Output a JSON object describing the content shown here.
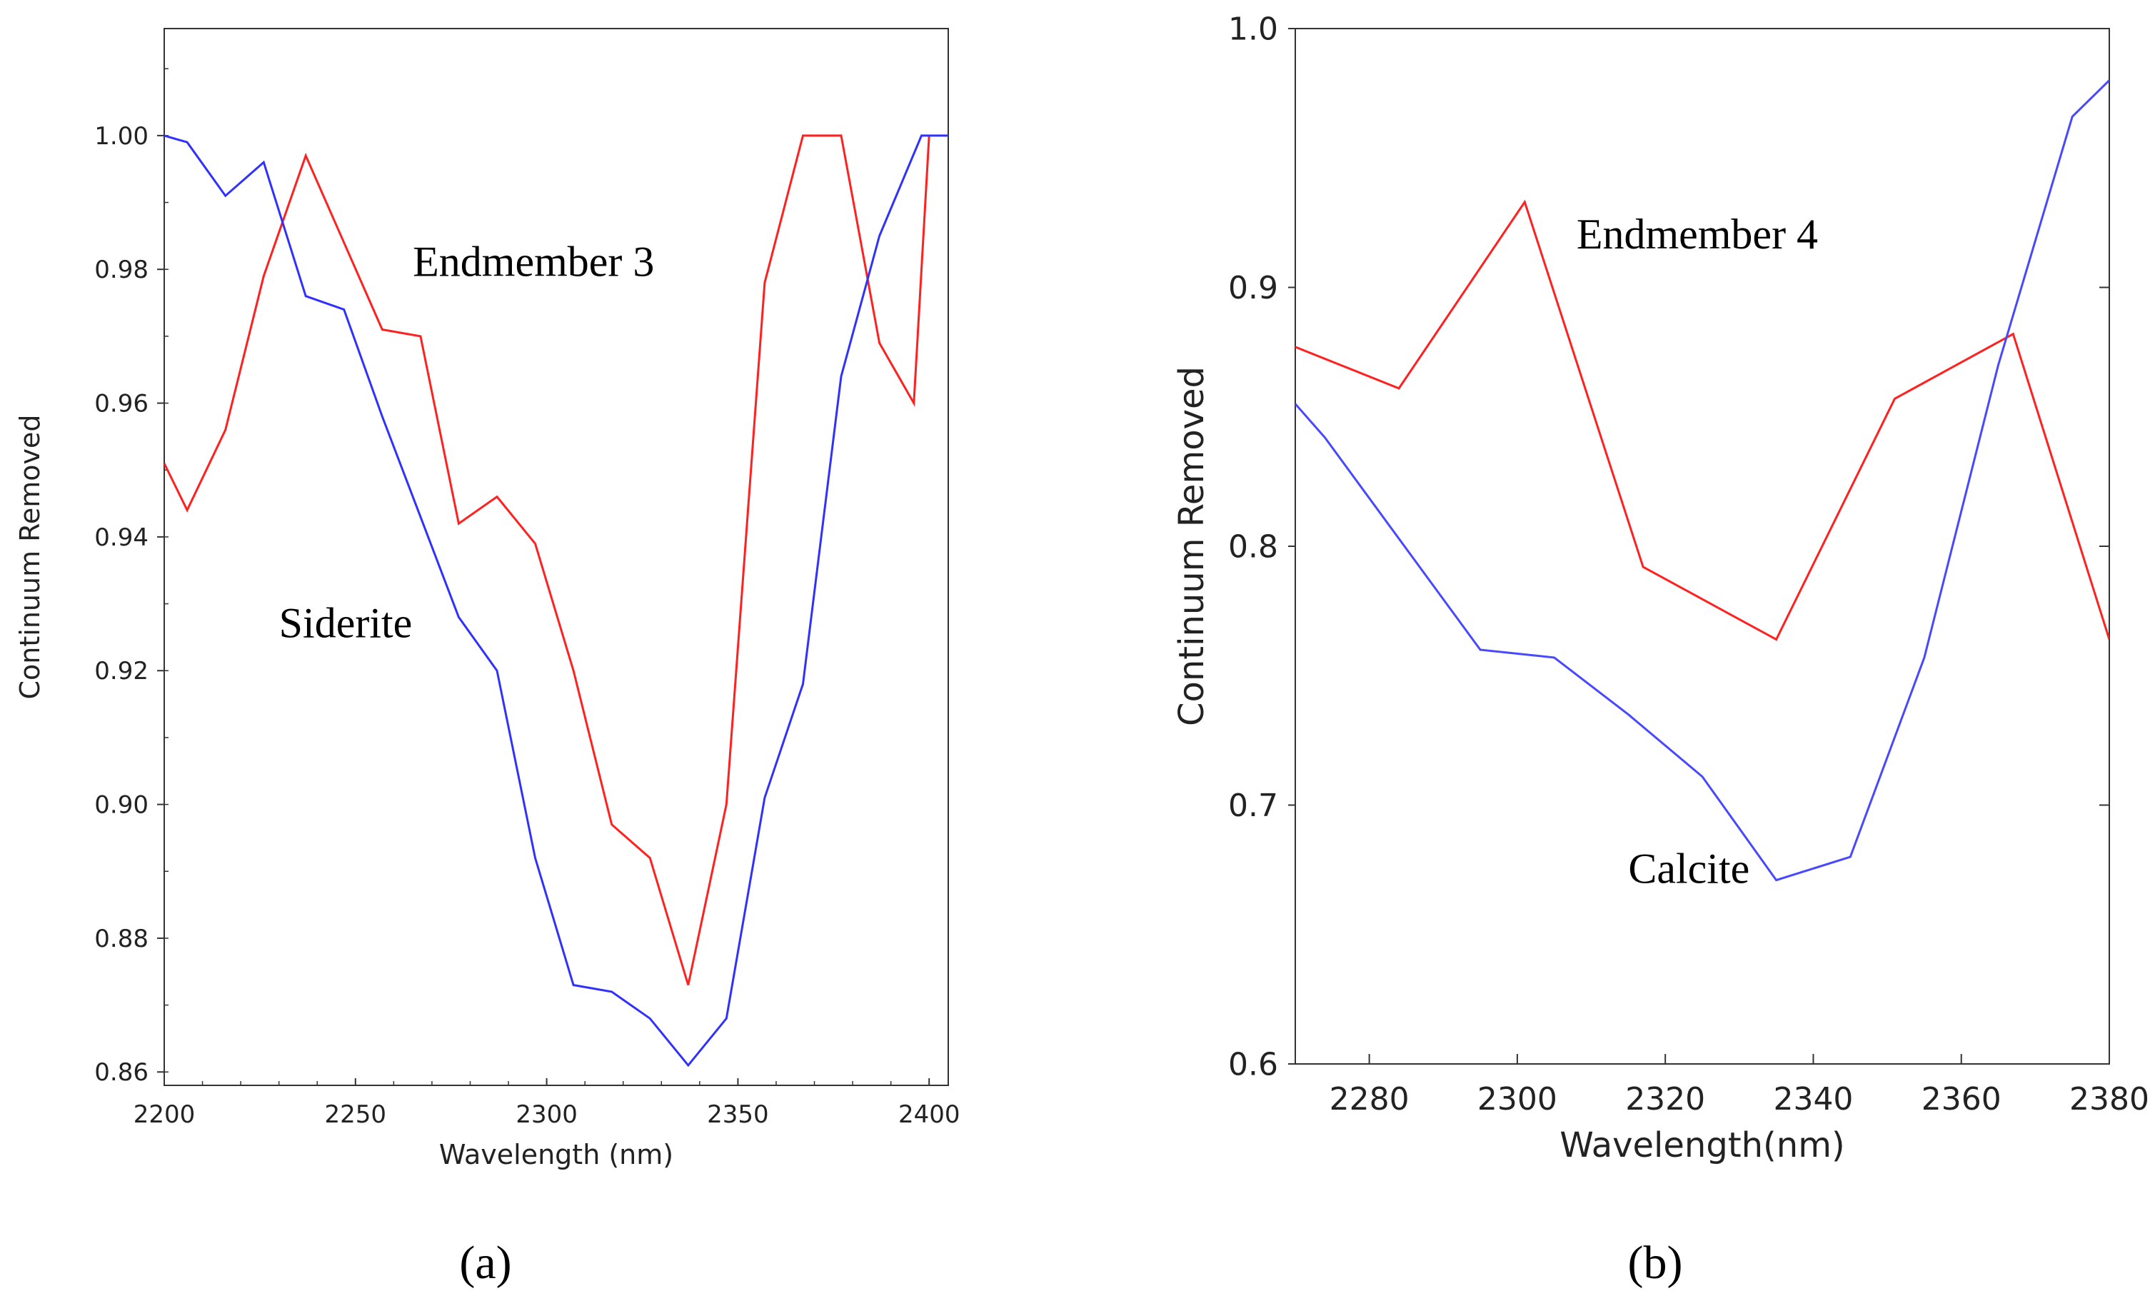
{
  "chart_data": [
    {
      "type": "line",
      "panel_label": "(a)",
      "xlabel": "Wavelength (nm)",
      "ylabel": "Continuum Removed",
      "xlim": [
        2200,
        2405
      ],
      "ylim": [
        0.858,
        1.016
      ],
      "x_ticks": [
        2200,
        2250,
        2300,
        2350,
        2400
      ],
      "x_tick_labels": [
        "2200",
        "2250",
        "2300",
        "2350",
        "2400"
      ],
      "y_ticks": [
        0.86,
        0.88,
        0.9,
        0.92,
        0.94,
        0.96,
        0.98,
        1.0
      ],
      "y_tick_labels": [
        "0.86",
        "0.88",
        "0.90",
        "0.92",
        "0.94",
        "0.96",
        "0.98",
        "1.00"
      ],
      "grid": false,
      "series": [
        {
          "name": "Endmember 3",
          "color": "#ff2020",
          "x": [
            2200,
            2206,
            2216,
            2226,
            2237,
            2247,
            2257,
            2267,
            2277,
            2287,
            2297,
            2307,
            2317,
            2327,
            2337,
            2347,
            2357,
            2367,
            2377,
            2387,
            2396,
            2400
          ],
          "y": [
            0.951,
            0.944,
            0.956,
            0.979,
            0.997,
            0.984,
            0.971,
            0.97,
            0.942,
            0.946,
            0.939,
            0.92,
            0.897,
            0.892,
            0.873,
            0.9,
            0.978,
            1.0,
            1.0,
            0.969,
            0.96,
            1.0
          ]
        },
        {
          "name": "Siderite",
          "color": "#3030ff",
          "x": [
            2200,
            2206,
            2216,
            2226,
            2237,
            2247,
            2257,
            2267,
            2277,
            2287,
            2297,
            2307,
            2317,
            2327,
            2337,
            2347,
            2357,
            2367,
            2377,
            2387,
            2398,
            2405
          ],
          "y": [
            1.0,
            0.999,
            0.991,
            0.996,
            0.976,
            0.974,
            0.958,
            0.943,
            0.928,
            0.92,
            0.892,
            0.873,
            0.872,
            0.868,
            0.861,
            0.868,
            0.901,
            0.918,
            0.964,
            0.985,
            1.0,
            1.0
          ]
        }
      ],
      "annotations": [
        {
          "text": "Endmember 3",
          "x": 2265,
          "y": 0.979
        },
        {
          "text": "Siderite",
          "x": 2230,
          "y": 0.925
        }
      ]
    },
    {
      "type": "line",
      "panel_label": "(b)",
      "xlabel": "Wavelength(nm)",
      "ylabel": "Continuum Removed",
      "xlim": [
        2270,
        2380
      ],
      "ylim": [
        0.6,
        1.0
      ],
      "x_ticks": [
        2280,
        2300,
        2320,
        2340,
        2360,
        2380
      ],
      "x_tick_labels": [
        "2280",
        "2300",
        "2320",
        "2340",
        "2360",
        "2380"
      ],
      "y_ticks": [
        0.6,
        0.7,
        0.8,
        0.9,
        1.0
      ],
      "y_tick_labels": [
        "0.6",
        "0.7",
        "0.8",
        "0.9",
        "1.0"
      ],
      "grid": false,
      "series": [
        {
          "name": "Endmember 4",
          "color": "#ff2020",
          "x": [
            2270,
            2284,
            2301,
            2317,
            2335,
            2351,
            2367,
            2380
          ],
          "y": [
            0.877,
            0.861,
            0.933,
            0.792,
            0.764,
            0.857,
            0.882,
            0.764
          ]
        },
        {
          "name": "Calcite",
          "color": "#4848ff",
          "x": [
            2270,
            2274,
            2295,
            2305,
            2315,
            2325,
            2335,
            2345,
            2355,
            2365,
            2375,
            2380
          ],
          "y": [
            0.855,
            0.842,
            0.76,
            0.757,
            0.735,
            0.711,
            0.671,
            0.68,
            0.757,
            0.87,
            0.966,
            0.98
          ]
        }
      ],
      "annotations": [
        {
          "text": "Endmember 4",
          "x": 2308,
          "y": 0.915
        },
        {
          "text": "Calcite",
          "x": 2315,
          "y": 0.67
        }
      ]
    }
  ]
}
